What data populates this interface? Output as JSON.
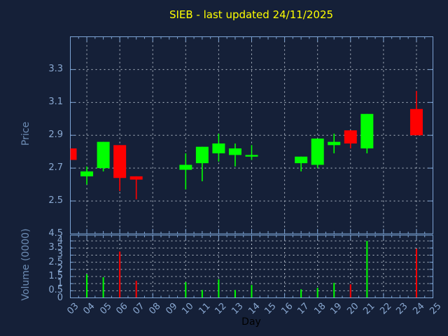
{
  "window": {
    "bg": "#152038"
  },
  "title": {
    "text": "SIEB - last updated 24/11/2025",
    "color": "#ffff00"
  },
  "axes": {
    "price_label": "Price",
    "volume_label": "Volume (0000)",
    "day_label": "Day",
    "axis_title_color": "#6d8cb4",
    "day_label_color": "#000000",
    "tick_label_color": "#89a8d1",
    "border_color": "#7ca3d4",
    "grid_color": "#b4bdc9"
  },
  "chart_data": {
    "type": "candlestick+volume",
    "title": "SIEB - last updated 24/11/2025",
    "xlabel": "Day",
    "x": {
      "days": [
        "03",
        "04",
        "05",
        "06",
        "07",
        "08",
        "09",
        "10",
        "11",
        "12",
        "13",
        "14",
        "15",
        "16",
        "17",
        "18",
        "19",
        "20",
        "21",
        "22",
        "23",
        "24",
        "25"
      ],
      "first_day": 3,
      "last_day": 25,
      "gridline_days": [
        4,
        6,
        8,
        10,
        12,
        14,
        16,
        18,
        20,
        22,
        24
      ]
    },
    "price_axis": {
      "label": "Price",
      "range": [
        2.3,
        3.5
      ],
      "ticks": [
        2.5,
        2.7,
        2.9,
        3.1,
        3.3
      ]
    },
    "volume_axis": {
      "label": "Volume (0000)",
      "range": [
        0,
        4.4
      ],
      "ticks": [
        0,
        0.5,
        1,
        1.5,
        2,
        2.5,
        3,
        3.5,
        4,
        4.5
      ]
    },
    "colors": {
      "up": "#00ff00",
      "down": "#ff0000"
    },
    "candles": [
      {
        "day": "03",
        "open": 2.82,
        "high": 2.82,
        "low": 2.75,
        "close": 2.75,
        "dir": "down"
      },
      {
        "day": "04",
        "open": 2.65,
        "high": 2.71,
        "low": 2.6,
        "close": 2.68,
        "dir": "up"
      },
      {
        "day": "05",
        "open": 2.7,
        "high": 2.86,
        "low": 2.68,
        "close": 2.86,
        "dir": "up"
      },
      {
        "day": "06",
        "open": 2.84,
        "high": 2.84,
        "low": 2.56,
        "close": 2.64,
        "dir": "down"
      },
      {
        "day": "07",
        "open": 2.65,
        "high": 2.65,
        "low": 2.51,
        "close": 2.63,
        "dir": "down"
      },
      {
        "day": "10",
        "open": 2.69,
        "high": 2.79,
        "low": 2.57,
        "close": 2.72,
        "dir": "up"
      },
      {
        "day": "11",
        "open": 2.73,
        "high": 2.83,
        "low": 2.62,
        "close": 2.83,
        "dir": "up"
      },
      {
        "day": "12",
        "open": 2.79,
        "high": 2.91,
        "low": 2.74,
        "close": 2.85,
        "dir": "up"
      },
      {
        "day": "13",
        "open": 2.78,
        "high": 2.85,
        "low": 2.71,
        "close": 2.82,
        "dir": "up"
      },
      {
        "day": "14",
        "open": 2.77,
        "high": 2.84,
        "low": 2.75,
        "close": 2.78,
        "dir": "up"
      },
      {
        "day": "17",
        "open": 2.73,
        "high": 2.77,
        "low": 2.68,
        "close": 2.77,
        "dir": "up"
      },
      {
        "day": "18",
        "open": 2.72,
        "high": 2.88,
        "low": 2.7,
        "close": 2.88,
        "dir": "up"
      },
      {
        "day": "19",
        "open": 2.84,
        "high": 2.91,
        "low": 2.79,
        "close": 2.86,
        "dir": "up"
      },
      {
        "day": "20",
        "open": 2.93,
        "high": 2.93,
        "low": 2.82,
        "close": 2.85,
        "dir": "down"
      },
      {
        "day": "21",
        "open": 2.82,
        "high": 3.03,
        "low": 2.79,
        "close": 3.03,
        "dir": "up"
      },
      {
        "day": "24",
        "open": 3.06,
        "high": 3.17,
        "low": 2.9,
        "close": 2.9,
        "dir": "down"
      }
    ],
    "volumes": [
      {
        "day": "04",
        "value": 1.65,
        "dir": "up"
      },
      {
        "day": "05",
        "value": 1.45,
        "dir": "up"
      },
      {
        "day": "06",
        "value": 3.25,
        "dir": "down"
      },
      {
        "day": "07",
        "value": 1.2,
        "dir": "down"
      },
      {
        "day": "10",
        "value": 1.1,
        "dir": "up"
      },
      {
        "day": "11",
        "value": 0.55,
        "dir": "up"
      },
      {
        "day": "12",
        "value": 1.3,
        "dir": "up"
      },
      {
        "day": "13",
        "value": 0.55,
        "dir": "up"
      },
      {
        "day": "14",
        "value": 0.9,
        "dir": "up"
      },
      {
        "day": "17",
        "value": 0.6,
        "dir": "up"
      },
      {
        "day": "18",
        "value": 0.7,
        "dir": "up"
      },
      {
        "day": "19",
        "value": 1.05,
        "dir": "up"
      },
      {
        "day": "20",
        "value": 0.95,
        "dir": "down"
      },
      {
        "day": "21",
        "value": 4.0,
        "dir": "up"
      },
      {
        "day": "24",
        "value": 3.45,
        "dir": "down"
      }
    ]
  }
}
